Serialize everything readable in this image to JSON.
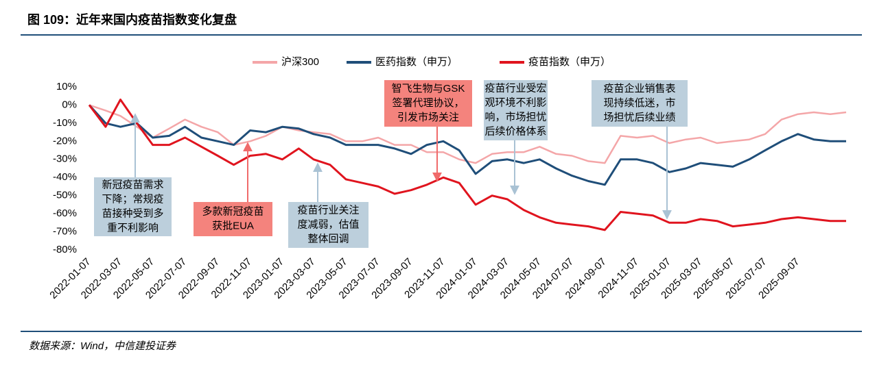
{
  "title": "图 109：近年来国内疫苗指数变化复盘",
  "source": "数据来源：Wind，中信建投证券",
  "chart_data": {
    "type": "line",
    "x": [
      "2022-01-07",
      "2022-02-07",
      "2022-03-07",
      "2022-04-07",
      "2022-05-07",
      "2022-06-07",
      "2022-07-07",
      "2022-08-07",
      "2022-09-07",
      "2022-10-07",
      "2022-11-07",
      "2022-12-07",
      "2023-01-07",
      "2023-02-07",
      "2023-03-07",
      "2023-04-07",
      "2023-05-07",
      "2023-06-07",
      "2023-07-07",
      "2023-08-07",
      "2023-09-07",
      "2023-10-07",
      "2023-11-07",
      "2023-12-07",
      "2024-01-07",
      "2024-02-07",
      "2024-03-07",
      "2024-04-07",
      "2024-05-07",
      "2024-06-07",
      "2024-07-07",
      "2024-08-07",
      "2024-09-07",
      "2024-10-07",
      "2024-11-07",
      "2024-12-07",
      "2025-01-07",
      "2025-02-07",
      "2025-03-07",
      "2025-04-07",
      "2025-05-07",
      "2025-06-07",
      "2025-07-07",
      "2025-08-07",
      "2025-09-07",
      "2025-10-07",
      "2025-11-07",
      "2025-12-07"
    ],
    "series": [
      {
        "name": "沪深300",
        "color": "#f4a6a8",
        "values": [
          0,
          -3,
          -6,
          -12,
          -18,
          -13,
          -8,
          -12,
          -15,
          -22,
          -20,
          -17,
          -12,
          -14,
          -15,
          -16,
          -20,
          -20,
          -18,
          -22,
          -22,
          -26,
          -26,
          -30,
          -32,
          -27,
          -26,
          -26,
          -23,
          -27,
          -28,
          -31,
          -32,
          -17,
          -18,
          -17,
          -21,
          -19,
          -18,
          -21,
          -20,
          -19,
          -16,
          -8,
          -5,
          -4,
          -5,
          -4
        ]
      },
      {
        "name": "医药指数（申万）",
        "color": "#1f4e79",
        "values": [
          0,
          -10,
          -12,
          -10,
          -18,
          -17,
          -12,
          -18,
          -20,
          -22,
          -14,
          -15,
          -12,
          -13,
          -16,
          -18,
          -22,
          -22,
          -22,
          -24,
          -27,
          -22,
          -20,
          -25,
          -38,
          -31,
          -30,
          -32,
          -30,
          -35,
          -39,
          -42,
          -44,
          -30,
          -30,
          -32,
          -37,
          -35,
          -32,
          -33,
          -34,
          -30,
          -25,
          -20,
          -16,
          -19,
          -20,
          -20
        ]
      },
      {
        "name": "疫苗指数（申万）",
        "color": "#e0141e",
        "values": [
          0,
          -12,
          3,
          -10,
          -22,
          -22,
          -18,
          -23,
          -28,
          -33,
          -28,
          -27,
          -30,
          -24,
          -30,
          -33,
          -41,
          -43,
          -45,
          -49,
          -47,
          -44,
          -40,
          -43,
          -55,
          -50,
          -52,
          -58,
          -62,
          -65,
          -66,
          -67,
          -69,
          -59,
          -60,
          -61,
          -65,
          -65,
          -63,
          -64,
          -67,
          -66,
          -65,
          -63,
          -62,
          -63,
          -64,
          -64
        ]
      }
    ],
    "xlim": [
      "2022-01-07",
      "2025-12-07"
    ],
    "xticks": [
      "2022-01-07",
      "2022-03-07",
      "2022-05-07",
      "2022-07-07",
      "2022-09-07",
      "2022-11-07",
      "2023-01-07",
      "2023-03-07",
      "2023-05-07",
      "2023-07-07",
      "2023-09-07",
      "2023-11-07",
      "2024-01-07",
      "2024-03-07",
      "2024-05-07",
      "2024-07-07",
      "2024-09-07",
      "2024-11-07",
      "2025-01-07",
      "2025-03-07",
      "2025-05-07",
      "2025-07-07",
      "2025-09-07"
    ],
    "ylim": [
      -80,
      10
    ],
    "yticks": [
      {
        "value": 10,
        "label": "10%"
      },
      {
        "value": 0,
        "label": "0%"
      },
      {
        "value": -10,
        "label": "-10%"
      },
      {
        "value": -20,
        "label": "-20%"
      },
      {
        "value": -30,
        "label": "-30%"
      },
      {
        "value": -40,
        "label": "-40%"
      },
      {
        "value": -50,
        "label": "-50%"
      },
      {
        "value": -60,
        "label": "-60%"
      },
      {
        "value": -70,
        "label": "-70%"
      },
      {
        "value": -80,
        "label": "-80%"
      }
    ],
    "grid": false,
    "legend": "top",
    "annotations": [
      {
        "lines": [
          "新冠疫苗需求",
          "下降；常规疫",
          "苗接种受到多",
          "重不利影响"
        ]
      },
      {
        "lines": [
          "多款新冠疫苗",
          "获批EUA"
        ]
      },
      {
        "lines": [
          "疫苗行业关注",
          "度减弱，估值",
          "整体回调"
        ]
      },
      {
        "lines": [
          "智飞生物与GSK",
          "签署代理协议，",
          "引发市场关注"
        ]
      },
      {
        "lines": [
          "疫苗行业受宏",
          "观环境不利影",
          "响，市场担忧",
          "后续价格体系"
        ]
      },
      {
        "lines": [
          "疫苗企业销售表",
          "现持续低迷，市",
          "场担忧后续业绩"
        ]
      }
    ]
  }
}
